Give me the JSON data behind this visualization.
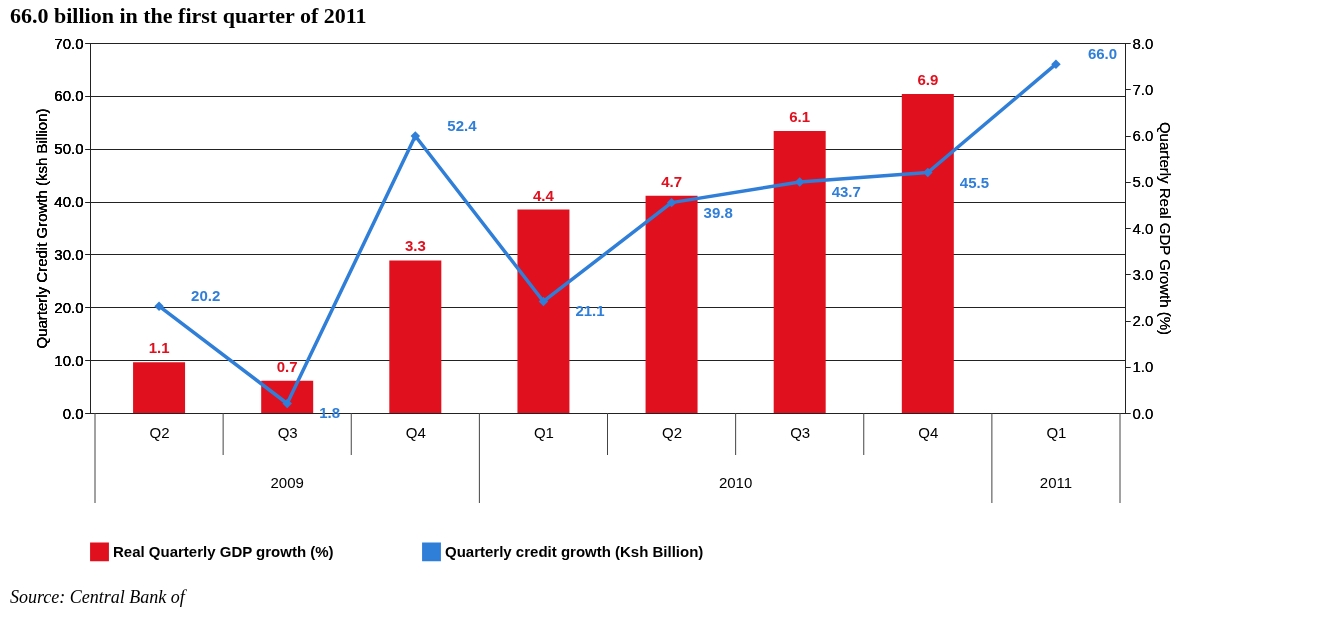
{
  "chart_data": {
    "type": "bar",
    "title": "66.0 billion in the first quarter of 2011",
    "categories": [
      "Q2",
      "Q3",
      "Q4",
      "Q1",
      "Q2",
      "Q3",
      "Q4",
      "Q1"
    ],
    "series": [
      {
        "name": "Real Quarterly  GDP growth (%)",
        "axis": "y2",
        "color": "#e0101e",
        "values": [
          1.1,
          0.7,
          3.3,
          4.4,
          4.7,
          6.1,
          6.9,
          null
        ],
        "value_labels": [
          "1.1",
          "0.7",
          "3.3",
          "4.4",
          "4.7",
          "6.1",
          "6.9",
          null
        ]
      },
      {
        "name": "Quarterly credit growth (Ksh Billion)",
        "type": "line",
        "axis": "y",
        "color": "#2f7ed8",
        "values": [
          20.2,
          1.8,
          52.4,
          21.1,
          39.8,
          43.7,
          45.5,
          66.0
        ],
        "value_labels": [
          "20.2",
          "1.8",
          "52.4",
          "21.1",
          "39.8",
          "43.7",
          "45.5",
          "66.0"
        ]
      }
    ],
    "ylabel": "Quarterly Credit Growth (ksh Billion)",
    "y2label": "Quarterly Real GDP Growth (%)",
    "ylim": [
      0,
      70
    ],
    "yticks": [
      {
        "value": 0,
        "label": "0.0"
      },
      {
        "value": 10,
        "label": "10.0"
      },
      {
        "value": 20,
        "label": "20.0"
      },
      {
        "value": 30,
        "label": "30.0"
      },
      {
        "value": 40,
        "label": "40.0"
      },
      {
        "value": 50,
        "label": "50.0"
      },
      {
        "value": 60,
        "label": "60.0"
      },
      {
        "value": 70,
        "label": "70.0"
      }
    ],
    "y2lim": [
      0,
      8
    ],
    "y2ticks": [
      {
        "value": 0,
        "label": "0.0"
      },
      {
        "value": 1,
        "label": "1.0"
      },
      {
        "value": 2,
        "label": "2.0"
      },
      {
        "value": 3,
        "label": "3.0"
      },
      {
        "value": 4,
        "label": "4.0"
      },
      {
        "value": 5,
        "label": "5.0"
      },
      {
        "value": 6,
        "label": "6.0"
      },
      {
        "value": 7,
        "label": "7.0"
      },
      {
        "value": 8,
        "label": "8.0"
      }
    ],
    "grid": "y",
    "legend": "bottom",
    "marker": "diamond",
    "annotations": [
      "2009",
      "2010",
      "2011",
      "Source: Central Bank of"
    ]
  }
}
